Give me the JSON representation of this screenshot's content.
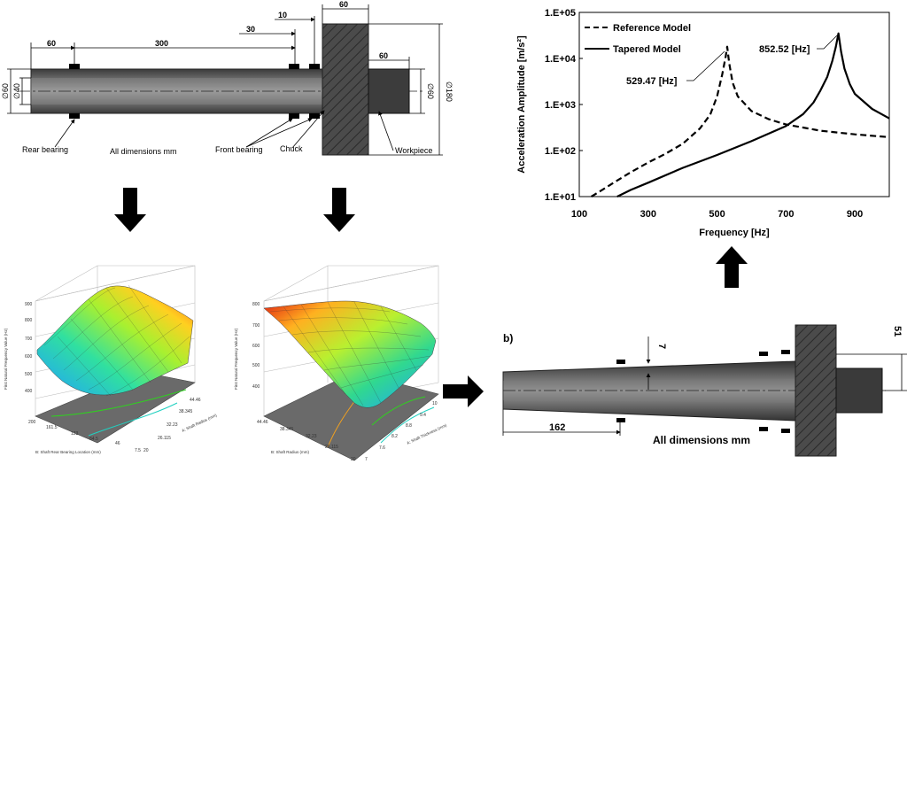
{
  "top_drawing": {
    "dims": {
      "d60_left": "60",
      "d300": "300",
      "d10": "10",
      "d30": "30",
      "d60_chuck": "60",
      "d60_workpiece": "60",
      "dia60_left": "∅60",
      "dia40": "∅40",
      "dia60_right": "∅60",
      "dia180": "∅180"
    },
    "labels": {
      "rear_bearing": "Rear bearing",
      "all_dims": "All dimensions mm",
      "front_bearing": "Front bearing",
      "chuck": "Chuck",
      "workpiece": "Workpiece"
    }
  },
  "surface_plot_1": {
    "z_label": "First Natural Frequency Value (Hz)",
    "z_ticks": [
      "900",
      "800",
      "700",
      "600",
      "500",
      "400"
    ],
    "x_label": "B: Shaft Rear Bearing Location (mm)",
    "x_ticks": [
      "200",
      "161.5",
      "123",
      "84.5",
      "46",
      "7.5"
    ],
    "y_label": "A: Shaft Radius (mm)",
    "y_ticks": [
      "20",
      "26.115",
      "32.23",
      "38.345",
      "44.46"
    ]
  },
  "surface_plot_2": {
    "z_label": "First Natural Frequency Value (Hz)",
    "z_ticks": [
      "800",
      "700",
      "600",
      "500",
      "400"
    ],
    "x_label": "B: Shaft Radius (mm)",
    "x_ticks": [
      "44.46",
      "38.345",
      "32.23",
      "26.115",
      "20"
    ],
    "y_label": "A: Shaft Thickness (mm)",
    "y_ticks": [
      "7",
      "7.6",
      "8.2",
      "8.8",
      "9.4",
      "10"
    ]
  },
  "bottom_drawing": {
    "panel_label": "b)",
    "dim_162": "162",
    "dim_7": "7",
    "dim_51": "51",
    "all_dims": "All dimensions mm"
  },
  "chart_data": {
    "type": "line",
    "title": "",
    "xlabel": "Frequency [Hz]",
    "ylabel": "Acceleration Amplitude [m/s²]",
    "xlim": [
      100,
      1000
    ],
    "ylim": [
      10,
      100000
    ],
    "y_scale": "log",
    "x_ticks": [
      100,
      300,
      500,
      700,
      900
    ],
    "x_tick_labels": [
      "100",
      "300",
      "500",
      "700",
      "900"
    ],
    "y_ticks": [
      10,
      100,
      1000,
      10000,
      100000
    ],
    "y_tick_labels": [
      "1.E+01",
      "1.E+02",
      "1.E+03",
      "1.E+04",
      "1.E+05"
    ],
    "legend": [
      "Reference Model",
      "Tapered Model"
    ],
    "legend_position": "top-left",
    "series": [
      {
        "name": "Reference Model",
        "style": "dashed",
        "resonance_hz": 529.47,
        "x": [
          135,
          160,
          200,
          250,
          300,
          350,
          400,
          450,
          480,
          500,
          515,
          525,
          529.47,
          535,
          545,
          560,
          600,
          650,
          700,
          800,
          900,
          1000
        ],
        "y": [
          10,
          13,
          20,
          34,
          55,
          85,
          140,
          300,
          600,
          1500,
          4500,
          11000,
          18000,
          8000,
          3000,
          1500,
          720,
          480,
          370,
          270,
          225,
          195
        ]
      },
      {
        "name": "Tapered Model",
        "style": "solid",
        "resonance_hz": 852.52,
        "x": [
          210,
          250,
          300,
          400,
          500,
          600,
          700,
          750,
          780,
          800,
          820,
          835,
          845,
          852.52,
          860,
          870,
          885,
          900,
          950,
          1000
        ],
        "y": [
          10,
          14,
          20,
          42,
          80,
          160,
          340,
          620,
          1100,
          2000,
          4000,
          9000,
          18000,
          35000,
          14000,
          6000,
          2800,
          1700,
          800,
          500
        ]
      }
    ],
    "annotations": [
      "529.47 [Hz]",
      "852.52 [Hz]"
    ]
  }
}
